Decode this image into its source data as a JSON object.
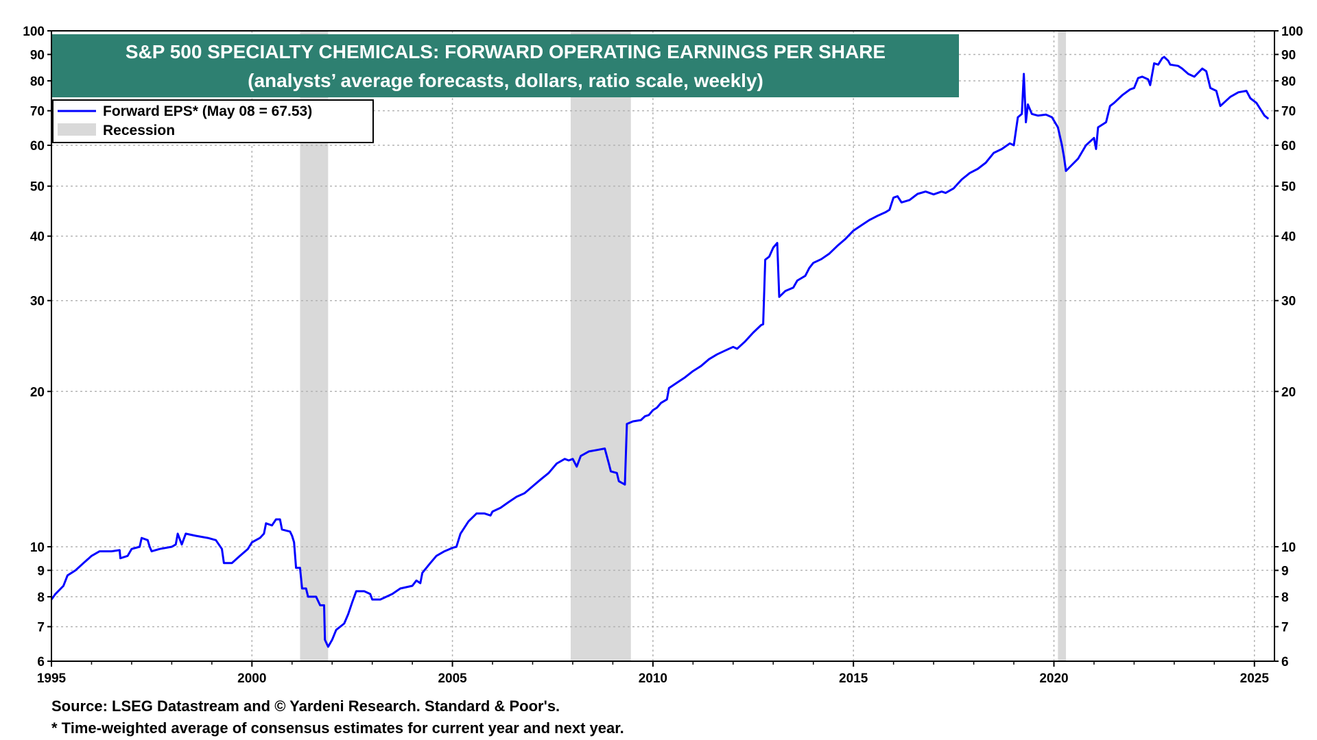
{
  "chart_data": {
    "type": "line",
    "title": "S&P 500 SPECIALTY CHEMICALS: FORWARD OPERATING EARNINGS PER SHARE",
    "subtitle": "(analysts’ average forecasts, dollars, ratio scale, weekly)",
    "y_scale": "log",
    "ylim": [
      6,
      100
    ],
    "xlim": [
      1995.0,
      2025.5
    ],
    "y_ticks": [
      6,
      7,
      8,
      9,
      10,
      20,
      30,
      40,
      50,
      60,
      70,
      80,
      90,
      100
    ],
    "y_tick_labels": [
      "6",
      "7",
      "8",
      "9",
      "10",
      "20",
      "30",
      "40",
      "50",
      "60",
      "70",
      "80",
      "90",
      "100"
    ],
    "x_ticks": [
      1995,
      2000,
      2005,
      2010,
      2015,
      2020,
      2025
    ],
    "x_tick_labels": [
      "1995",
      "2000",
      "2005",
      "2010",
      "2015",
      "2020",
      "2025"
    ],
    "grid": true,
    "legend_position": "top-left",
    "legend": [
      {
        "label": "Forward EPS* (May 08 = 67.53)",
        "kind": "line",
        "color": "#0000ff"
      },
      {
        "label": "Recession",
        "kind": "box",
        "color": "#d9d9d9"
      }
    ],
    "recessions": [
      [
        2001.2,
        2001.9
      ],
      [
        2007.95,
        2009.45
      ],
      [
        2020.1,
        2020.3
      ]
    ],
    "series": [
      {
        "name": "Forward EPS",
        "color": "#0000ff",
        "points": [
          [
            1995.0,
            7.9
          ],
          [
            1995.1,
            8.1
          ],
          [
            1995.3,
            8.4
          ],
          [
            1995.4,
            8.8
          ],
          [
            1995.6,
            9.0
          ],
          [
            1995.8,
            9.3
          ],
          [
            1996.0,
            9.6
          ],
          [
            1996.2,
            9.8
          ],
          [
            1996.5,
            9.8
          ],
          [
            1996.7,
            9.85
          ],
          [
            1996.72,
            9.5
          ],
          [
            1996.9,
            9.6
          ],
          [
            1997.0,
            9.9
          ],
          [
            1997.2,
            10.0
          ],
          [
            1997.25,
            10.4
          ],
          [
            1997.4,
            10.3
          ],
          [
            1997.45,
            10.0
          ],
          [
            1997.5,
            9.8
          ],
          [
            1997.7,
            9.9
          ],
          [
            1998.0,
            10.0
          ],
          [
            1998.1,
            10.1
          ],
          [
            1998.15,
            10.6
          ],
          [
            1998.25,
            10.1
          ],
          [
            1998.35,
            10.6
          ],
          [
            1998.6,
            10.5
          ],
          [
            1998.9,
            10.4
          ],
          [
            1999.1,
            10.3
          ],
          [
            1999.25,
            9.9
          ],
          [
            1999.3,
            9.3
          ],
          [
            1999.5,
            9.3
          ],
          [
            1999.7,
            9.6
          ],
          [
            1999.9,
            9.9
          ],
          [
            2000.0,
            10.2
          ],
          [
            2000.2,
            10.4
          ],
          [
            2000.3,
            10.6
          ],
          [
            2000.35,
            11.1
          ],
          [
            2000.5,
            11.0
          ],
          [
            2000.6,
            11.3
          ],
          [
            2000.7,
            11.3
          ],
          [
            2000.75,
            10.8
          ],
          [
            2000.95,
            10.7
          ],
          [
            2001.0,
            10.5
          ],
          [
            2001.05,
            10.2
          ],
          [
            2001.1,
            9.1
          ],
          [
            2001.2,
            9.1
          ],
          [
            2001.25,
            8.3
          ],
          [
            2001.35,
            8.3
          ],
          [
            2001.4,
            8.0
          ],
          [
            2001.6,
            8.0
          ],
          [
            2001.7,
            7.7
          ],
          [
            2001.8,
            7.7
          ],
          [
            2001.82,
            6.6
          ],
          [
            2001.9,
            6.4
          ],
          [
            2002.0,
            6.6
          ],
          [
            2002.1,
            6.9
          ],
          [
            2002.3,
            7.1
          ],
          [
            2002.4,
            7.4
          ],
          [
            2002.5,
            7.8
          ],
          [
            2002.6,
            8.2
          ],
          [
            2002.8,
            8.2
          ],
          [
            2002.95,
            8.1
          ],
          [
            2003.0,
            7.9
          ],
          [
            2003.2,
            7.9
          ],
          [
            2003.5,
            8.1
          ],
          [
            2003.7,
            8.3
          ],
          [
            2004.0,
            8.4
          ],
          [
            2004.1,
            8.6
          ],
          [
            2004.2,
            8.5
          ],
          [
            2004.25,
            8.9
          ],
          [
            2004.35,
            9.1
          ],
          [
            2004.45,
            9.3
          ],
          [
            2004.6,
            9.6
          ],
          [
            2004.8,
            9.8
          ],
          [
            2005.0,
            9.95
          ],
          [
            2005.1,
            10.0
          ],
          [
            2005.2,
            10.6
          ],
          [
            2005.4,
            11.2
          ],
          [
            2005.6,
            11.6
          ],
          [
            2005.8,
            11.6
          ],
          [
            2005.95,
            11.5
          ],
          [
            2006.0,
            11.7
          ],
          [
            2006.2,
            11.9
          ],
          [
            2006.4,
            12.2
          ],
          [
            2006.6,
            12.5
          ],
          [
            2006.8,
            12.7
          ],
          [
            2007.0,
            13.1
          ],
          [
            2007.2,
            13.5
          ],
          [
            2007.4,
            13.9
          ],
          [
            2007.6,
            14.5
          ],
          [
            2007.8,
            14.8
          ],
          [
            2007.9,
            14.7
          ],
          [
            2008.0,
            14.8
          ],
          [
            2008.1,
            14.3
          ],
          [
            2008.2,
            15.0
          ],
          [
            2008.4,
            15.3
          ],
          [
            2008.6,
            15.4
          ],
          [
            2008.8,
            15.5
          ],
          [
            2008.9,
            14.5
          ],
          [
            2008.95,
            14.0
          ],
          [
            2009.1,
            13.9
          ],
          [
            2009.15,
            13.4
          ],
          [
            2009.3,
            13.2
          ],
          [
            2009.35,
            17.3
          ],
          [
            2009.5,
            17.5
          ],
          [
            2009.7,
            17.6
          ],
          [
            2009.8,
            17.9
          ],
          [
            2009.9,
            18.0
          ],
          [
            2010.0,
            18.4
          ],
          [
            2010.1,
            18.6
          ],
          [
            2010.2,
            19.0
          ],
          [
            2010.35,
            19.3
          ],
          [
            2010.4,
            20.3
          ],
          [
            2010.6,
            20.8
          ],
          [
            2010.8,
            21.3
          ],
          [
            2011.0,
            21.9
          ],
          [
            2011.2,
            22.4
          ],
          [
            2011.4,
            23.1
          ],
          [
            2011.6,
            23.6
          ],
          [
            2011.8,
            24.0
          ],
          [
            2012.0,
            24.4
          ],
          [
            2012.1,
            24.2
          ],
          [
            2012.3,
            25.0
          ],
          [
            2012.5,
            26.0
          ],
          [
            2012.7,
            26.9
          ],
          [
            2012.75,
            27.0
          ],
          [
            2012.8,
            36.0
          ],
          [
            2012.9,
            36.5
          ],
          [
            2013.0,
            38.0
          ],
          [
            2013.1,
            38.8
          ],
          [
            2013.15,
            30.5
          ],
          [
            2013.3,
            31.3
          ],
          [
            2013.5,
            31.8
          ],
          [
            2013.6,
            32.8
          ],
          [
            2013.8,
            33.5
          ],
          [
            2013.9,
            34.7
          ],
          [
            2014.0,
            35.5
          ],
          [
            2014.2,
            36.1
          ],
          [
            2014.4,
            37.0
          ],
          [
            2014.6,
            38.3
          ],
          [
            2014.8,
            39.5
          ],
          [
            2015.0,
            41.0
          ],
          [
            2015.2,
            42.0
          ],
          [
            2015.4,
            43.0
          ],
          [
            2015.6,
            43.8
          ],
          [
            2015.8,
            44.5
          ],
          [
            2015.9,
            45.0
          ],
          [
            2016.0,
            47.5
          ],
          [
            2016.1,
            47.8
          ],
          [
            2016.2,
            46.5
          ],
          [
            2016.4,
            47.0
          ],
          [
            2016.6,
            48.3
          ],
          [
            2016.8,
            48.8
          ],
          [
            2017.0,
            48.2
          ],
          [
            2017.2,
            48.8
          ],
          [
            2017.3,
            48.5
          ],
          [
            2017.5,
            49.5
          ],
          [
            2017.7,
            51.5
          ],
          [
            2017.9,
            53.0
          ],
          [
            2018.1,
            54.0
          ],
          [
            2018.3,
            55.5
          ],
          [
            2018.5,
            58.0
          ],
          [
            2018.7,
            59.0
          ],
          [
            2018.9,
            60.5
          ],
          [
            2019.0,
            60.0
          ],
          [
            2019.1,
            68.0
          ],
          [
            2019.2,
            69.0
          ],
          [
            2019.25,
            82.5
          ],
          [
            2019.3,
            66.5
          ],
          [
            2019.35,
            72.0
          ],
          [
            2019.45,
            69.0
          ],
          [
            2019.6,
            68.5
          ],
          [
            2019.8,
            68.8
          ],
          [
            2019.95,
            68.0
          ],
          [
            2020.1,
            65.0
          ],
          [
            2020.2,
            60.0
          ],
          [
            2020.25,
            57.0
          ],
          [
            2020.3,
            53.5
          ],
          [
            2020.4,
            54.5
          ],
          [
            2020.6,
            56.5
          ],
          [
            2020.8,
            60.0
          ],
          [
            2021.0,
            62.0
          ],
          [
            2021.05,
            59.0
          ],
          [
            2021.1,
            65.0
          ],
          [
            2021.3,
            66.5
          ],
          [
            2021.4,
            71.5
          ],
          [
            2021.5,
            72.5
          ],
          [
            2021.7,
            75.0
          ],
          [
            2021.9,
            77.0
          ],
          [
            2022.0,
            77.5
          ],
          [
            2022.1,
            81.0
          ],
          [
            2022.2,
            81.5
          ],
          [
            2022.35,
            80.5
          ],
          [
            2022.4,
            78.5
          ],
          [
            2022.5,
            86.5
          ],
          [
            2022.6,
            86.0
          ],
          [
            2022.7,
            88.5
          ],
          [
            2022.75,
            89.0
          ],
          [
            2022.85,
            87.5
          ],
          [
            2022.9,
            86.0
          ],
          [
            2023.1,
            85.5
          ],
          [
            2023.2,
            84.5
          ],
          [
            2023.35,
            82.5
          ],
          [
            2023.5,
            81.5
          ],
          [
            2023.7,
            84.5
          ],
          [
            2023.8,
            83.5
          ],
          [
            2023.9,
            77.5
          ],
          [
            2024.05,
            76.5
          ],
          [
            2024.15,
            71.5
          ],
          [
            2024.4,
            74.5
          ],
          [
            2024.6,
            76.0
          ],
          [
            2024.8,
            76.5
          ],
          [
            2024.9,
            74.0
          ],
          [
            2025.05,
            72.5
          ],
          [
            2025.15,
            70.5
          ],
          [
            2025.25,
            68.5
          ],
          [
            2025.35,
            67.53
          ]
        ]
      }
    ],
    "source_note": "Source: LSEG Datastream and © Yardeni Research. Standard & Poor's.",
    "footnote": "* Time-weighted average of consensus estimates for current year and next year."
  },
  "colors": {
    "title_bg": "#2e8071",
    "recession": "#d9d9d9",
    "line": "#0000ff",
    "grid": "#b3b3b3"
  }
}
